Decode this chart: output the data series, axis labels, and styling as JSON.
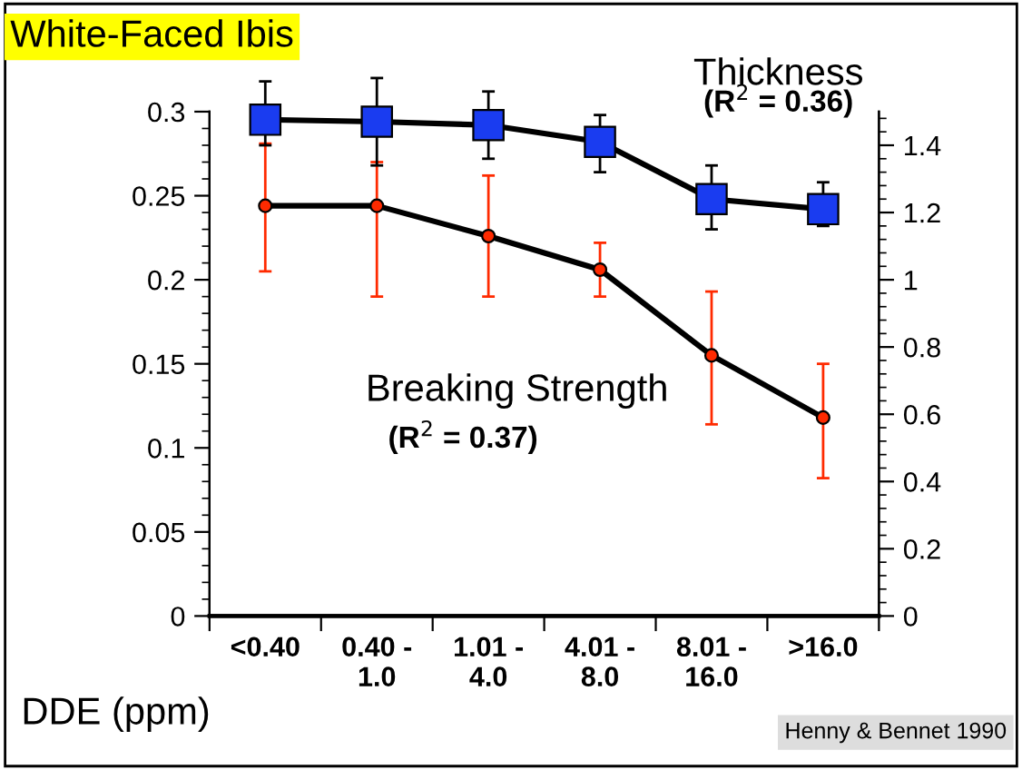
{
  "chart_data": {
    "type": "line",
    "title": "White-Faced Ibis",
    "xlabel": "DDE (ppm)",
    "categories": [
      "<0.40",
      "0.40 -\n1.0",
      "1.01 -\n4.0",
      "4.01 -\n8.0",
      "8.01 -\n16.0",
      ">16.0"
    ],
    "series": [
      {
        "name": "Breaking Strength",
        "color": "#ff2a00",
        "marker": "circle",
        "axis": "y",
        "values": [
          0.244,
          0.244,
          0.226,
          0.206,
          0.155,
          0.118
        ],
        "errors": [
          [
            0.205,
            0.281
          ],
          [
            0.19,
            0.27
          ],
          [
            0.19,
            0.262
          ],
          [
            0.19,
            0.222
          ],
          [
            0.114,
            0.193
          ],
          [
            0.082,
            0.15
          ]
        ]
      },
      {
        "name": "Thickness",
        "color": "#1a3cf0",
        "marker": "square",
        "axis": "y2",
        "values": [
          1.476,
          1.47,
          1.46,
          1.41,
          1.24,
          1.21
        ],
        "errors": [
          [
            1.4,
            1.59
          ],
          [
            1.34,
            1.6
          ],
          [
            1.36,
            1.56
          ],
          [
            1.32,
            1.49
          ],
          [
            1.15,
            1.34
          ],
          [
            1.16,
            1.29
          ]
        ]
      }
    ],
    "ylim": [
      0,
      0.3
    ],
    "yticks": [
      0,
      0.05,
      0.1,
      0.15,
      0.2,
      0.25,
      0.3
    ],
    "y2lim": [
      0,
      1.5
    ],
    "y2ticks": [
      0,
      0.2,
      0.4,
      0.6,
      0.8,
      1,
      1.2,
      1.4
    ],
    "grid": false,
    "legend": false,
    "annotations": [
      "(R$^{2}$ = 0.37)",
      "(R$^{2}$ = 0.36)",
      "Henny & Bennet 1990"
    ]
  }
}
